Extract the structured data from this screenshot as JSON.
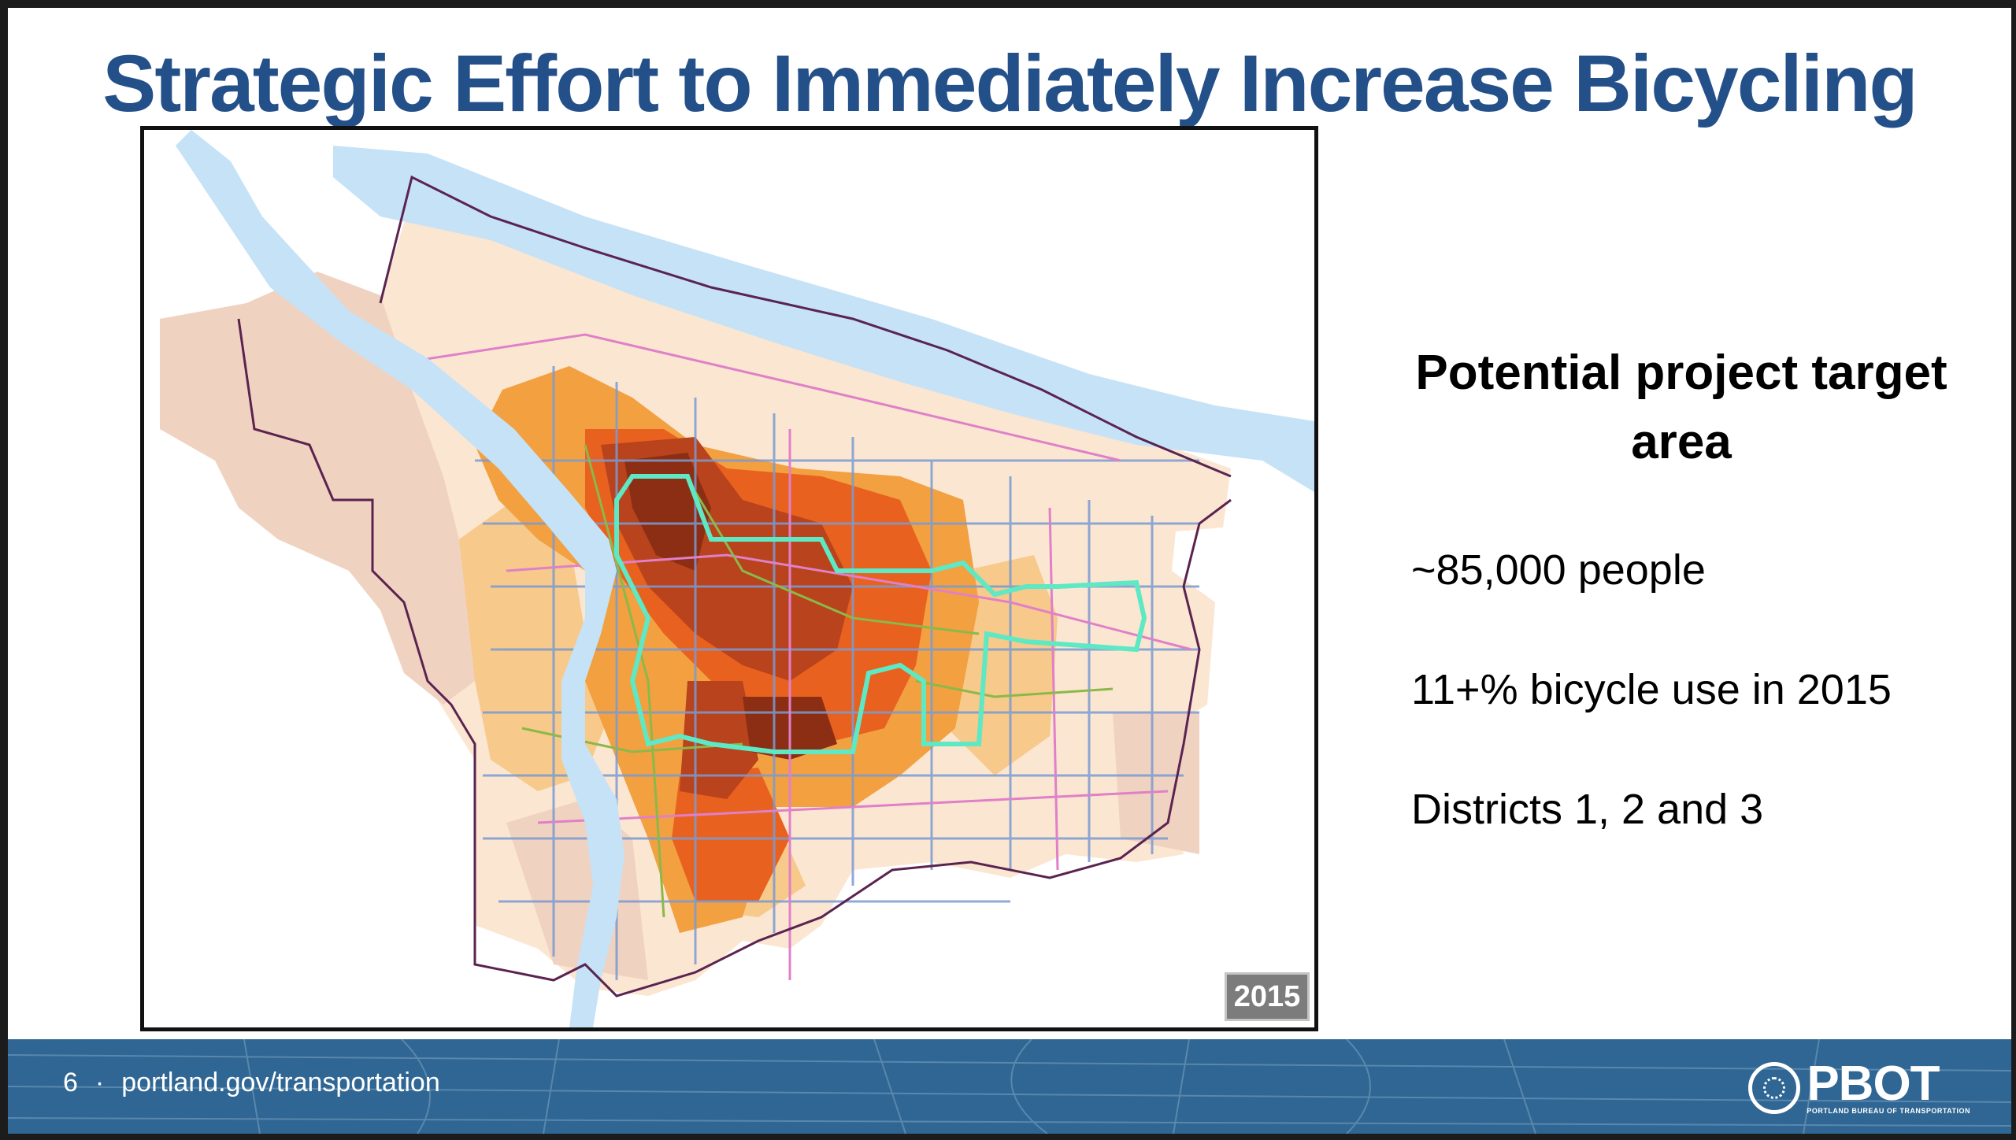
{
  "slide": {
    "title": "Strategic Effort to Immediately Increase Bicycling"
  },
  "map": {
    "year_label": "2015",
    "colors": {
      "river": "#c5e2f7",
      "base_light": "#fbe6d2",
      "base_tan": "#f0d2c0",
      "low": "#f7c98a",
      "medium": "#f2a040",
      "high": "#e8611f",
      "very_high": "#b8431c",
      "highest": "#8c2e13",
      "target_outline": "#5ee8c4",
      "boundary": "#5a2350",
      "streets": "#7b9bd1",
      "arterials": "#e080c8",
      "bikeways": "#8cb84a"
    }
  },
  "side_panel": {
    "heading": "Potential project target area",
    "stats": [
      "~85,000 people",
      "11+% bicycle use in 2015",
      "Districts 1, 2 and 3"
    ]
  },
  "footer": {
    "page_number": "6",
    "separator": "·",
    "url": "portland.gov/transportation",
    "logo_text": "PBOT",
    "logo_subtext": "PORTLAND BUREAU OF TRANSPORTATION"
  }
}
